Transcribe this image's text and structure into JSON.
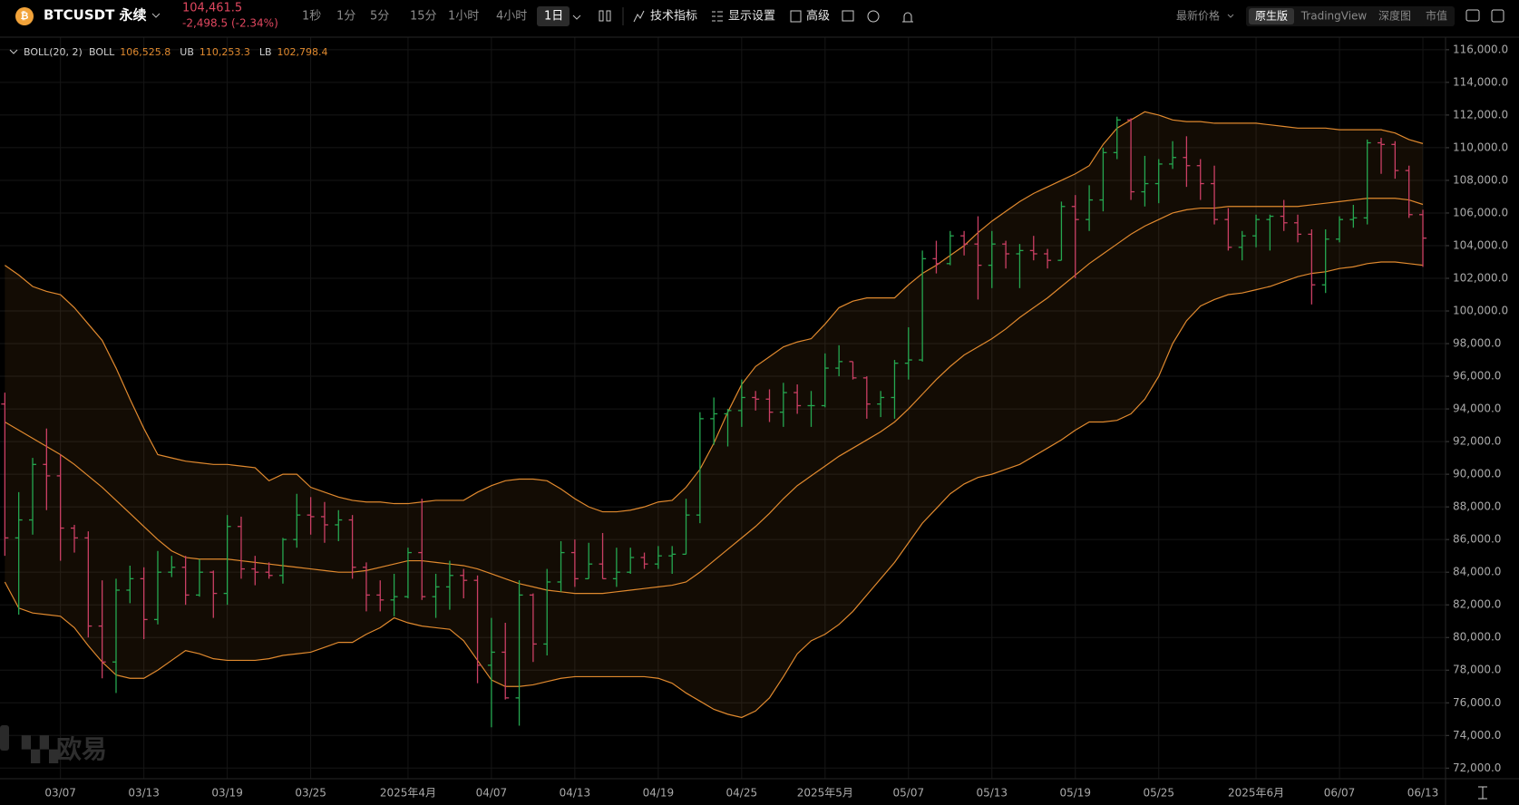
{
  "toolbar": {
    "symbol": "BTCUSDT 永续",
    "price": "104,461.5",
    "change": "-2,498.5 (-2.34%)",
    "intervals": [
      "1秒",
      "1分",
      "5分",
      "15分",
      "1小时",
      "4小时",
      "1日"
    ],
    "tools": [
      "技术指标",
      "显示设置",
      "高级"
    ],
    "price_mode": "最新价格",
    "views": [
      "原生版",
      "TradingView",
      "深度图",
      "市值"
    ]
  },
  "watermark": "欧易",
  "chart_data": {
    "type": "ohlc",
    "up_color": "#25a750",
    "down_color": "#ca3f64",
    "grid": true,
    "categories": [
      null,
      null,
      null,
      null,
      "03/07",
      null,
      null,
      null,
      null,
      null,
      "03/13",
      null,
      null,
      null,
      null,
      null,
      "03/19",
      null,
      null,
      null,
      null,
      null,
      "03/25",
      null,
      null,
      null,
      null,
      null,
      null,
      "2025年4月",
      null,
      null,
      null,
      null,
      null,
      "04/07",
      null,
      null,
      null,
      null,
      null,
      "04/13",
      null,
      null,
      null,
      null,
      null,
      "04/19",
      null,
      null,
      null,
      null,
      null,
      "04/25",
      null,
      null,
      null,
      null,
      null,
      "2025年5月",
      null,
      null,
      null,
      null,
      null,
      "05/07",
      null,
      null,
      null,
      null,
      null,
      "05/13",
      null,
      null,
      null,
      null,
      null,
      "05/19",
      null,
      null,
      null,
      null,
      null,
      "05/25",
      null,
      null,
      null,
      null,
      null,
      null,
      "2025年6月",
      null,
      null,
      null,
      null,
      null,
      "06/07",
      null,
      null,
      null,
      null,
      null,
      "06/13"
    ],
    "open": [
      94300,
      86100,
      87200,
      90600,
      89900,
      86700,
      86100,
      80700,
      78500,
      82900,
      83600,
      81100,
      84000,
      84300,
      82600,
      84000,
      82700,
      86800,
      84200,
      84000,
      83800,
      86000,
      87500,
      87400,
      86900,
      87200,
      84300,
      82600,
      82300,
      82500,
      85200,
      82500,
      83100,
      83800,
      83500,
      78300,
      79100,
      76300,
      82600,
      79600,
      83400,
      85200,
      83600,
      84500,
      83600,
      84000,
      84900,
      84500,
      85000,
      85100,
      87500,
      93400,
      93700,
      93900,
      94700,
      94600,
      93800,
      95000,
      94200,
      94200,
      96500,
      96900,
      95900,
      94300,
      94700,
      96800,
      97000,
      103200,
      102900,
      104600,
      104100,
      102800,
      104100,
      103500,
      103700,
      103500,
      103100,
      106400,
      105600,
      106800,
      109700,
      111700,
      107300,
      107800,
      109000,
      109400,
      108900,
      107800,
      105600,
      103900,
      104600,
      105600,
      105800,
      105400,
      104700,
      101600,
      104400,
      105600,
      105700,
      110300,
      110200,
      108600,
      105900
    ],
    "high": [
      95000,
      88900,
      91000,
      92800,
      91200,
      86900,
      86500,
      83500,
      83600,
      84400,
      84300,
      85300,
      85000,
      85000,
      84800,
      84100,
      87500,
      87400,
      85000,
      84600,
      86100,
      88800,
      88600,
      88300,
      87800,
      87500,
      84600,
      83500,
      83900,
      85500,
      88500,
      83900,
      84700,
      84200,
      83800,
      81200,
      80900,
      83500,
      82700,
      84200,
      85900,
      86000,
      85800,
      86400,
      85500,
      85500,
      85200,
      85600,
      85600,
      88500,
      93800,
      94700,
      94000,
      95800,
      95100,
      95200,
      95600,
      95500,
      95100,
      97400,
      97900,
      96900,
      96000,
      95100,
      97000,
      99000,
      103700,
      104300,
      104900,
      104900,
      105800,
      104900,
      104300,
      104100,
      104600,
      103800,
      106700,
      107100,
      107700,
      110000,
      111900,
      111800,
      109500,
      109300,
      110400,
      110700,
      109300,
      108900,
      106300,
      104900,
      105900,
      105900,
      106800,
      105900,
      105000,
      105000,
      105800,
      106500,
      110500,
      110600,
      110400,
      108900,
      106200
    ],
    "low": [
      85000,
      81400,
      86300,
      87800,
      84700,
      85200,
      80000,
      77500,
      76600,
      82100,
      79900,
      80800,
      83700,
      82000,
      82500,
      81200,
      82000,
      83600,
      83200,
      83600,
      83300,
      85500,
      86300,
      85800,
      85900,
      83600,
      81600,
      81600,
      81300,
      82400,
      82300,
      81200,
      81700,
      82400,
      77200,
      74500,
      76200,
      74600,
      78500,
      78900,
      82800,
      83100,
      83600,
      83600,
      83100,
      83900,
      84200,
      84200,
      83900,
      85100,
      87000,
      91800,
      91700,
      92900,
      93900,
      93200,
      92900,
      93700,
      92900,
      94100,
      96000,
      95800,
      93400,
      93500,
      93400,
      95800,
      96900,
      102300,
      102800,
      103400,
      100700,
      101400,
      102600,
      101400,
      103100,
      102600,
      103100,
      102000,
      104900,
      106100,
      109300,
      106800,
      106400,
      106600,
      108700,
      107600,
      106800,
      105300,
      103700,
      103100,
      103900,
      103700,
      104900,
      104200,
      100400,
      101100,
      104200,
      105100,
      105300,
      108400,
      108100,
      105700,
      102700
    ],
    "close": [
      86100,
      87200,
      90600,
      89900,
      86700,
      86100,
      80700,
      78500,
      82900,
      83600,
      81100,
      84000,
      84300,
      82600,
      84000,
      82700,
      86800,
      84200,
      84000,
      83800,
      86000,
      87500,
      87400,
      86900,
      87200,
      84300,
      82600,
      82300,
      82500,
      85200,
      82500,
      83100,
      83800,
      83500,
      78300,
      79100,
      76300,
      82600,
      79600,
      83400,
      85200,
      83600,
      84500,
      83600,
      84000,
      84900,
      84500,
      85000,
      85100,
      87500,
      93400,
      93700,
      93900,
      94700,
      94600,
      93800,
      95000,
      94200,
      94200,
      96500,
      96900,
      95900,
      94300,
      94700,
      96800,
      97000,
      103200,
      102900,
      104600,
      104100,
      102800,
      104100,
      103500,
      103700,
      103500,
      103100,
      106400,
      105600,
      106800,
      109700,
      111700,
      107300,
      107800,
      109000,
      109400,
      108900,
      107800,
      105600,
      103900,
      104600,
      105600,
      105800,
      105400,
      104700,
      101600,
      104400,
      105600,
      105700,
      110300,
      110200,
      108600,
      105900,
      104461.5
    ],
    "indicator": {
      "name": "BOLL(20, 2)",
      "fill": "#f0963214",
      "series": [
        {
          "name": "BOLL",
          "color": "#e0892e",
          "last_label": "106,525.8",
          "values": [
            93200,
            92700,
            92200,
            91700,
            91200,
            90600,
            89900,
            89200,
            88400,
            87600,
            86800,
            86000,
            85300,
            84900,
            84800,
            84800,
            84800,
            84700,
            84600,
            84500,
            84400,
            84300,
            84200,
            84100,
            84000,
            84000,
            84100,
            84300,
            84500,
            84700,
            84700,
            84600,
            84500,
            84400,
            84200,
            83900,
            83600,
            83300,
            83100,
            82900,
            82800,
            82700,
            82700,
            82700,
            82800,
            82900,
            83000,
            83100,
            83200,
            83400,
            84000,
            84700,
            85400,
            86100,
            86800,
            87600,
            88500,
            89300,
            89900,
            90500,
            91100,
            91600,
            92100,
            92600,
            93200,
            94000,
            94900,
            95800,
            96600,
            97300,
            97800,
            98300,
            98900,
            99600,
            100200,
            100800,
            101500,
            102200,
            102900,
            103500,
            104100,
            104700,
            105200,
            105600,
            106000,
            106200,
            106300,
            106300,
            106400,
            106400,
            106400,
            106400,
            106400,
            106400,
            106500,
            106600,
            106700,
            106800,
            106900,
            106900,
            106900,
            106800,
            106525.8
          ]
        },
        {
          "name": "UB",
          "color": "#e0892e",
          "last_label": "110,253.3",
          "values": [
            102800,
            102200,
            101500,
            101200,
            101000,
            100200,
            99200,
            98200,
            96500,
            94600,
            92800,
            91200,
            91000,
            90800,
            90700,
            90600,
            90600,
            90500,
            90400,
            89600,
            90000,
            90000,
            89200,
            88900,
            88600,
            88400,
            88300,
            88300,
            88200,
            88200,
            88300,
            88400,
            88400,
            88400,
            88900,
            89300,
            89600,
            89700,
            89700,
            89600,
            89100,
            88500,
            88000,
            87700,
            87700,
            87800,
            88000,
            88300,
            88400,
            89200,
            90300,
            91900,
            93800,
            95500,
            96600,
            97200,
            97800,
            98100,
            98300,
            99200,
            100200,
            100600,
            100800,
            100800,
            100800,
            101600,
            102300,
            102800,
            103400,
            104000,
            104800,
            105500,
            106100,
            106700,
            107200,
            107600,
            108000,
            108400,
            108900,
            110200,
            111200,
            111700,
            112200,
            112000,
            111700,
            111600,
            111600,
            111500,
            111500,
            111500,
            111500,
            111400,
            111300,
            111200,
            111200,
            111200,
            111100,
            111100,
            111100,
            111100,
            110900,
            110500,
            110253.3
          ]
        },
        {
          "name": "LB",
          "color": "#e0892e",
          "last_label": "102,798.4",
          "values": [
            83400,
            81800,
            81500,
            81400,
            81300,
            80600,
            79500,
            78500,
            77700,
            77500,
            77500,
            78000,
            78600,
            79200,
            79000,
            78700,
            78600,
            78600,
            78600,
            78700,
            78900,
            79000,
            79100,
            79400,
            79700,
            79700,
            80200,
            80600,
            81200,
            80900,
            80700,
            80600,
            80500,
            79800,
            78600,
            77400,
            77000,
            77000,
            77100,
            77300,
            77500,
            77600,
            77600,
            77600,
            77600,
            77600,
            77600,
            77500,
            77200,
            76600,
            76100,
            75600,
            75300,
            75100,
            75500,
            76300,
            77600,
            79000,
            79800,
            80200,
            80800,
            81600,
            82600,
            83600,
            84600,
            85800,
            87000,
            87900,
            88800,
            89400,
            89800,
            90000,
            90300,
            90600,
            91100,
            91600,
            92100,
            92700,
            93200,
            93200,
            93300,
            93700,
            94600,
            96000,
            98000,
            99400,
            100300,
            100700,
            101000,
            101100,
            101300,
            101500,
            101800,
            102100,
            102300,
            102400,
            102600,
            102700,
            102900,
            103000,
            103000,
            102900,
            102798.4
          ]
        }
      ]
    },
    "ylim": [
      71350,
      116770
    ],
    "yticks": [
      {
        "value": 72000,
        "label": "72,000.0"
      },
      {
        "value": 74000,
        "label": "74,000.0"
      },
      {
        "value": 76000,
        "label": "76,000.0"
      },
      {
        "value": 78000,
        "label": "78,000.0"
      },
      {
        "value": 80000,
        "label": "80,000.0"
      },
      {
        "value": 82000,
        "label": "82,000.0"
      },
      {
        "value": 84000,
        "label": "84,000.0"
      },
      {
        "value": 86000,
        "label": "86,000.0"
      },
      {
        "value": 88000,
        "label": "88,000.0"
      },
      {
        "value": 90000,
        "label": "90,000.0"
      },
      {
        "value": 92000,
        "label": "92,000.0"
      },
      {
        "value": 94000,
        "label": "94,000.0"
      },
      {
        "value": 96000,
        "label": "96,000.0"
      },
      {
        "value": 98000,
        "label": "98,000.0"
      },
      {
        "value": 100000,
        "label": "100,000.0"
      },
      {
        "value": 102000,
        "label": "102,000.0"
      },
      {
        "value": 104000,
        "label": "104,000.0"
      },
      {
        "value": 106000,
        "label": "106,000.0"
      },
      {
        "value": 108000,
        "label": "108,000.0"
      },
      {
        "value": 110000,
        "label": "110,000.0"
      },
      {
        "value": 112000,
        "label": "112,000.0"
      },
      {
        "value": 114000,
        "label": "114,000.0"
      },
      {
        "value": 116000,
        "label": "116,000.0"
      }
    ]
  }
}
